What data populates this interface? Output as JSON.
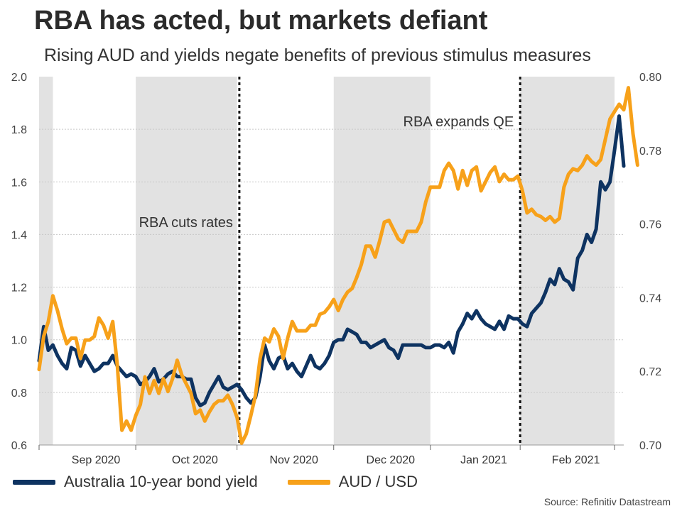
{
  "title": "RBA has acted, but markets defiant",
  "subtitle": "Rising AUD and yields negate benefits of previous stimulus measures",
  "source": "Source: Refinitiv Datastream",
  "colors": {
    "bond": "#0e3361",
    "aud": "#f7a11a",
    "shade": "#e2e2e2",
    "grid": "#c8c8c8"
  },
  "chart_data": {
    "type": "line",
    "x_range": [
      0,
      109
    ],
    "month_ticks": [
      {
        "label": "Sep 2020",
        "index": 21
      },
      {
        "label": "Oct 2020",
        "index": 43
      },
      {
        "label": "Nov 2020",
        "index": 64
      },
      {
        "label": "Dec 2020",
        "index": 85
      },
      {
        "label": "Jan 2021",
        "index": 104.5
      },
      {
        "label": "Feb 2021",
        "index": 125
      }
    ],
    "shaded_ranges": [
      [
        0,
        3
      ],
      [
        21,
        43
      ],
      [
        64,
        85
      ],
      [
        104.5,
        125
      ]
    ],
    "events": [
      {
        "label": "RBA cuts rates",
        "index": 43.5
      },
      {
        "label": "RBA expands QE",
        "index": 104.5
      }
    ],
    "y_left": {
      "min": 0.6,
      "max": 2.0,
      "ticks": [
        "0.6",
        "0.8",
        "1.0",
        "1.2",
        "1.4",
        "1.6",
        "1.8",
        "2.0"
      ]
    },
    "y_right": {
      "min": 0.7,
      "max": 0.8,
      "ticks": [
        "0.70",
        "0.72",
        "0.74",
        "0.76",
        "0.78",
        "0.80"
      ]
    },
    "series": [
      {
        "name": "Australia 10-year bond yield",
        "axis": "left",
        "values": [
          0.92,
          1.05,
          0.96,
          0.98,
          0.94,
          0.91,
          0.89,
          0.97,
          0.96,
          0.9,
          0.94,
          0.91,
          0.88,
          0.89,
          0.91,
          0.91,
          0.94,
          0.9,
          0.88,
          0.86,
          0.87,
          0.86,
          0.83,
          0.84,
          0.86,
          0.89,
          0.84,
          0.85,
          0.87,
          0.88,
          0.86,
          0.86,
          0.85,
          0.85,
          0.78,
          0.75,
          0.76,
          0.8,
          0.83,
          0.86,
          0.82,
          0.81,
          0.82,
          0.83,
          0.81,
          0.78,
          0.76,
          0.78,
          0.86,
          0.98,
          0.92,
          0.89,
          0.93,
          0.94,
          0.89,
          0.91,
          0.88,
          0.86,
          0.9,
          0.94,
          0.9,
          0.89,
          0.91,
          0.94,
          0.99,
          1.0,
          1.0,
          1.04,
          1.03,
          1.02,
          0.99,
          0.99,
          0.97,
          0.98,
          0.99,
          1.0,
          0.97,
          0.96,
          0.93,
          0.98,
          0.98,
          0.98,
          0.98,
          0.98,
          0.97,
          0.97,
          0.98,
          0.98,
          0.97,
          0.99,
          0.95,
          1.03,
          1.06,
          1.1,
          1.08,
          1.11,
          1.08,
          1.06,
          1.05,
          1.04,
          1.07,
          1.04,
          1.09,
          1.08,
          1.08,
          1.06,
          1.05,
          1.1,
          1.12,
          1.14,
          1.18,
          1.23,
          1.21,
          1.27,
          1.23,
          1.22,
          1.19,
          1.31,
          1.34,
          1.4,
          1.37,
          1.42,
          1.6,
          1.57,
          1.6,
          1.72,
          1.85,
          1.66
        ]
      },
      {
        "name": "AUD / USD",
        "axis": "right",
        "values": [
          0.7205,
          0.7295,
          0.7335,
          0.7405,
          0.7365,
          0.7315,
          0.7275,
          0.729,
          0.729,
          0.7235,
          0.7285,
          0.7285,
          0.7295,
          0.7345,
          0.7325,
          0.729,
          0.7335,
          0.7215,
          0.704,
          0.7065,
          0.704,
          0.708,
          0.711,
          0.7185,
          0.714,
          0.7175,
          0.714,
          0.718,
          0.7145,
          0.718,
          0.723,
          0.719,
          0.7165,
          0.714,
          0.7085,
          0.7095,
          0.7065,
          0.709,
          0.711,
          0.712,
          0.712,
          0.7135,
          0.711,
          0.7075,
          0.7005,
          0.703,
          0.708,
          0.7135,
          0.7235,
          0.729,
          0.728,
          0.7315,
          0.7295,
          0.7235,
          0.729,
          0.7335,
          0.731,
          0.731,
          0.731,
          0.7325,
          0.7325,
          0.7355,
          0.736,
          0.7375,
          0.7395,
          0.7365,
          0.7395,
          0.7415,
          0.7425,
          0.7455,
          0.749,
          0.754,
          0.754,
          0.751,
          0.7555,
          0.7605,
          0.761,
          0.7585,
          0.756,
          0.755,
          0.758,
          0.758,
          0.758,
          0.7605,
          0.766,
          0.77,
          0.77,
          0.77,
          0.7745,
          0.7765,
          0.7745,
          0.7695,
          0.7745,
          0.7705,
          0.7745,
          0.7755,
          0.769,
          0.7715,
          0.774,
          0.7755,
          0.7715,
          0.7735,
          0.772,
          0.772,
          0.773,
          0.769,
          0.763,
          0.764,
          0.7625,
          0.762,
          0.761,
          0.762,
          0.7605,
          0.7615,
          0.77,
          0.7735,
          0.775,
          0.7745,
          0.776,
          0.7785,
          0.777,
          0.776,
          0.7775,
          0.783,
          0.7885,
          0.7905,
          0.7925,
          0.791,
          0.797,
          0.7845,
          0.776
        ]
      }
    ]
  },
  "legend": [
    {
      "label": "Australia 10-year bond yield",
      "color_key": "bond"
    },
    {
      "label": "AUD / USD",
      "color_key": "aud"
    }
  ]
}
